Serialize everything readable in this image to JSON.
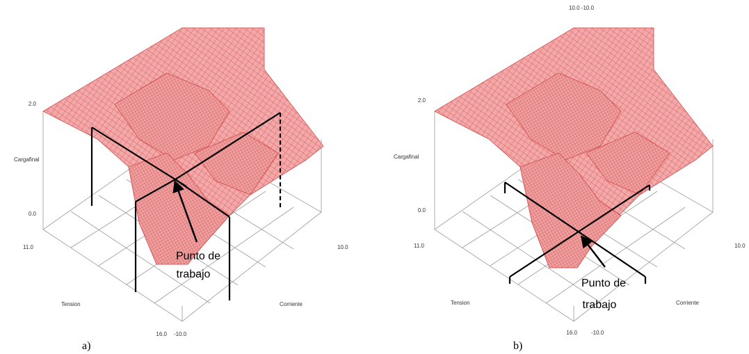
{
  "figure": {
    "panels": [
      {
        "caption": "a)",
        "zlabel": "Cargafinal",
        "xlabel": "Tension",
        "ylabel": "Corriente",
        "z_top": "2.0",
        "z_bottom": "0.0",
        "tension_min": "11.0",
        "tension_max": "16.0",
        "corriente_a": "10.0",
        "corriente_b": "-10.0",
        "corriente_back": "",
        "note_line1": "Punto de",
        "note_line2": "trabajo"
      },
      {
        "caption": "b)",
        "zlabel": "Cargafinal",
        "xlabel": "Tension",
        "ylabel": "Corriente",
        "z_top": "2.0",
        "z_bottom": "0.0",
        "tension_min": "11.0",
        "tension_max": "16.0",
        "corriente_a": "10.0",
        "corriente_b": "-10.0",
        "corriente_back": "10.0  -10.0",
        "note_line1": "Punto de",
        "note_line2": "trabajo"
      }
    ],
    "colors": {
      "surface_fill": "#f2a6a6",
      "surface_mesh": "#d94a4a",
      "box": "#9a9a9a",
      "annotation": "#000000"
    }
  }
}
